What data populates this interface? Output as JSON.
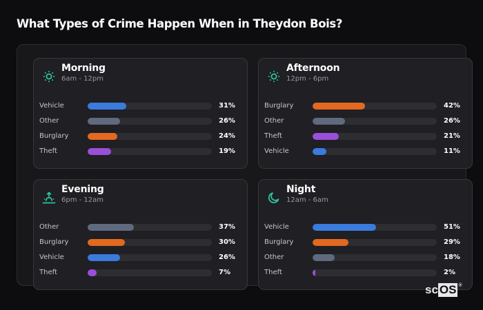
{
  "page": {
    "title": "What Types of Crime Happen When in Theydon Bois?"
  },
  "colors": {
    "accent": "#2ec4a0",
    "Vehicle": "#3a7bdc",
    "Other": "#5f6a7e",
    "Burglary": "#e2691f",
    "Theft": "#9a4fd8",
    "track": "#2d2d32"
  },
  "cards": [
    {
      "title": "Morning",
      "subtitle": "6am - 12pm",
      "icon": "sun-icon",
      "rows": [
        {
          "label": "Vehicle",
          "value": "31%",
          "pct": 31
        },
        {
          "label": "Other",
          "value": "26%",
          "pct": 26
        },
        {
          "label": "Burglary",
          "value": "24%",
          "pct": 24
        },
        {
          "label": "Theft",
          "value": "19%",
          "pct": 19
        }
      ]
    },
    {
      "title": "Afternoon",
      "subtitle": "12pm - 6pm",
      "icon": "sun-icon",
      "rows": [
        {
          "label": "Burglary",
          "value": "42%",
          "pct": 42
        },
        {
          "label": "Other",
          "value": "26%",
          "pct": 26
        },
        {
          "label": "Theft",
          "value": "21%",
          "pct": 21
        },
        {
          "label": "Vehicle",
          "value": "11%",
          "pct": 11
        }
      ]
    },
    {
      "title": "Evening",
      "subtitle": "6pm - 12am",
      "icon": "sunset-icon",
      "rows": [
        {
          "label": "Other",
          "value": "37%",
          "pct": 37
        },
        {
          "label": "Burglary",
          "value": "30%",
          "pct": 30
        },
        {
          "label": "Vehicle",
          "value": "26%",
          "pct": 26
        },
        {
          "label": "Theft",
          "value": "7%",
          "pct": 7
        }
      ]
    },
    {
      "title": "Night",
      "subtitle": "12am - 6am",
      "icon": "moon-icon",
      "rows": [
        {
          "label": "Vehicle",
          "value": "51%",
          "pct": 51
        },
        {
          "label": "Burglary",
          "value": "29%",
          "pct": 29
        },
        {
          "label": "Other",
          "value": "18%",
          "pct": 18
        },
        {
          "label": "Theft",
          "value": "2%",
          "pct": 2
        }
      ]
    }
  ],
  "watermark": {
    "sc": "sc",
    "os": "OS",
    "reg": "®"
  }
}
